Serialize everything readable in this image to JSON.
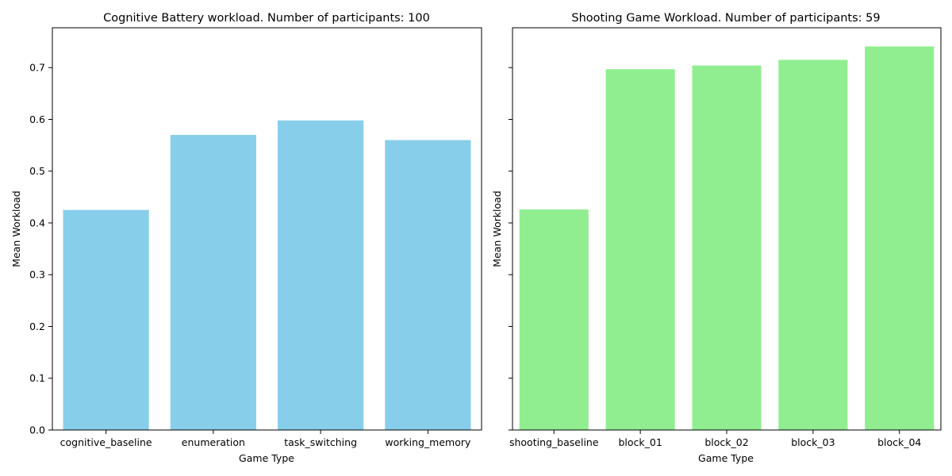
{
  "chart_data": [
    {
      "type": "bar",
      "title": "Cognitive Battery workload. Number of participants: 100",
      "xlabel": "Game Type",
      "ylabel": "Mean Workload",
      "categories": [
        "cognitive_baseline",
        "enumeration",
        "task_switching",
        "working_memory"
      ],
      "values": [
        0.425,
        0.57,
        0.598,
        0.56
      ],
      "color": "#87CEEB",
      "ylim": [
        0,
        0.777
      ],
      "yticks": [
        0.0,
        0.1,
        0.2,
        0.3,
        0.4,
        0.5,
        0.6,
        0.7
      ],
      "ytick_labels": [
        "0.0",
        "0.1",
        "0.2",
        "0.3",
        "0.4",
        "0.5",
        "0.6",
        "0.7"
      ],
      "grid": false
    },
    {
      "type": "bar",
      "title": "Shooting Game Workload. Number of participants: 59",
      "xlabel": "Game Type",
      "ylabel": "Mean Workload",
      "categories": [
        "shooting_baseline",
        "block_01",
        "block_02",
        "block_03",
        "block_04"
      ],
      "values": [
        0.426,
        0.697,
        0.704,
        0.715,
        0.741
      ],
      "color": "#90EE90",
      "ylim": [
        0,
        0.777
      ],
      "yticks": [
        0.0,
        0.1,
        0.2,
        0.3,
        0.4,
        0.5,
        0.6,
        0.7
      ],
      "ytick_labels": [],
      "grid": false
    }
  ]
}
